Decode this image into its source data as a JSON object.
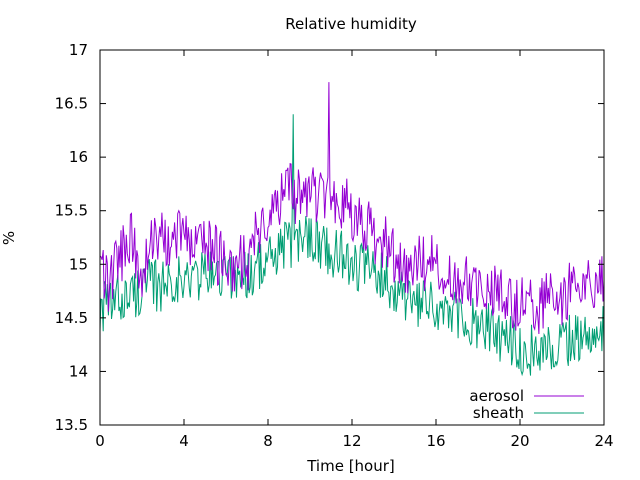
{
  "chart_data": {
    "type": "line",
    "title": "Relative humidity",
    "xlabel": "Time [hour]",
    "ylabel": "%",
    "xlim": [
      0,
      24
    ],
    "ylim": [
      13.5,
      17
    ],
    "xticks": [
      0,
      4,
      8,
      12,
      16,
      20,
      24
    ],
    "xtick_labels": [
      "0",
      "4",
      "8",
      "12",
      "16",
      "20",
      "24"
    ],
    "yticks": [
      13.5,
      14,
      14.5,
      15,
      15.5,
      16,
      16.5,
      17
    ],
    "ytick_labels": [
      "13.5",
      "14",
      "14.5",
      "15",
      "15.5",
      "16",
      "16.5",
      "17"
    ],
    "grid": false,
    "legend_position": "bottom-right",
    "series": [
      {
        "name": "aerosol",
        "color": "#9400d3",
        "x": [
          0,
          0.5,
          1,
          1.5,
          2,
          2.5,
          3,
          3.5,
          4,
          4.5,
          5,
          5.5,
          6,
          6.5,
          7,
          7.5,
          8,
          8.5,
          9,
          9.5,
          10,
          10.5,
          11,
          11.5,
          12,
          12.5,
          13,
          13.5,
          14,
          14.5,
          15,
          15.5,
          16,
          16.5,
          17,
          17.5,
          18,
          18.5,
          19,
          19.5,
          20,
          20.5,
          21,
          21.5,
          22,
          22.5,
          23,
          23.5,
          24
        ],
        "y": [
          14.9,
          14.8,
          15.1,
          15.2,
          14.9,
          15.2,
          15.3,
          15.2,
          15.3,
          15.2,
          15.2,
          15.1,
          15.0,
          15.0,
          15.0,
          15.3,
          15.5,
          15.6,
          15.7,
          15.6,
          15.7,
          15.6,
          15.7,
          15.6,
          15.5,
          15.4,
          15.3,
          15.2,
          15.1,
          15.0,
          15.0,
          15.0,
          15.0,
          14.9,
          14.9,
          14.9,
          14.8,
          14.8,
          14.7,
          14.6,
          14.6,
          14.6,
          14.6,
          14.7,
          14.7,
          14.8,
          14.8,
          14.8,
          14.9
        ],
        "noise": 0.28,
        "spike": [
          10.9,
          16.7
        ]
      },
      {
        "name": "sheath",
        "color": "#009e73",
        "x": [
          0,
          0.5,
          1,
          1.5,
          2,
          2.5,
          3,
          3.5,
          4,
          4.5,
          5,
          5.5,
          6,
          6.5,
          7,
          7.5,
          8,
          8.5,
          9,
          9.5,
          10,
          10.5,
          11,
          11.5,
          12,
          12.5,
          13,
          13.5,
          14,
          14.5,
          15,
          15.5,
          16,
          16.5,
          17,
          17.5,
          18,
          18.5,
          19,
          19.5,
          20,
          20.5,
          21,
          21.5,
          22,
          22.5,
          23,
          23.5,
          24
        ],
        "y": [
          14.6,
          14.6,
          14.7,
          14.7,
          14.8,
          14.8,
          14.8,
          14.9,
          14.8,
          14.9,
          14.9,
          14.9,
          14.9,
          14.9,
          14.9,
          15.0,
          15.0,
          15.1,
          15.2,
          15.2,
          15.3,
          15.2,
          15.1,
          15.1,
          15.0,
          15.0,
          14.9,
          14.9,
          14.8,
          14.7,
          14.6,
          14.6,
          14.6,
          14.5,
          14.5,
          14.5,
          14.4,
          14.4,
          14.3,
          14.3,
          14.2,
          14.2,
          14.2,
          14.2,
          14.3,
          14.3,
          14.3,
          14.4,
          14.4
        ],
        "noise": 0.25,
        "spike": [
          9.2,
          16.4
        ]
      }
    ]
  }
}
